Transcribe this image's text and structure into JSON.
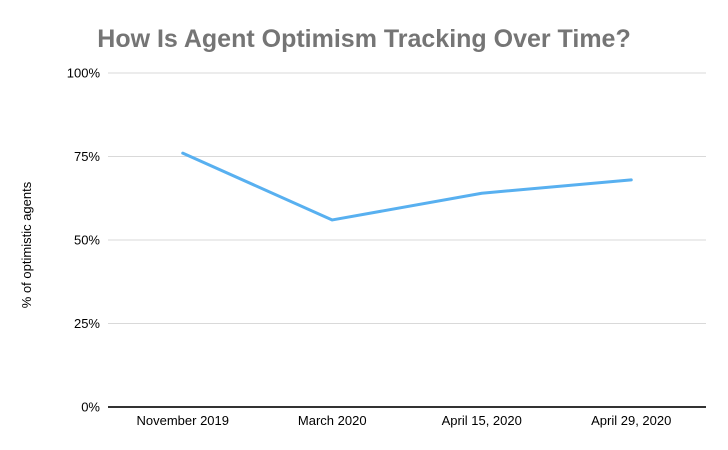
{
  "chart_data": {
    "type": "line",
    "title": "How Is Agent Optimism Tracking Over Time?",
    "xlabel": "",
    "ylabel": "% of optimistic agents",
    "categories": [
      "November 2019",
      "March 2020",
      "April 15, 2020",
      "April 29, 2020"
    ],
    "values": [
      76,
      56,
      64,
      68
    ],
    "ylim": [
      0,
      100
    ],
    "yticks": [
      100,
      75,
      50,
      25,
      0
    ],
    "ytick_labels": [
      "100%",
      "75%",
      "50%",
      "25%",
      "0%"
    ],
    "grid": true,
    "legend": "none",
    "colors": {
      "line": "#58b0f0",
      "gridline": "#d9d9d9",
      "axis_line": "#333333",
      "title": "#757575",
      "tick_text": "#000000"
    }
  }
}
